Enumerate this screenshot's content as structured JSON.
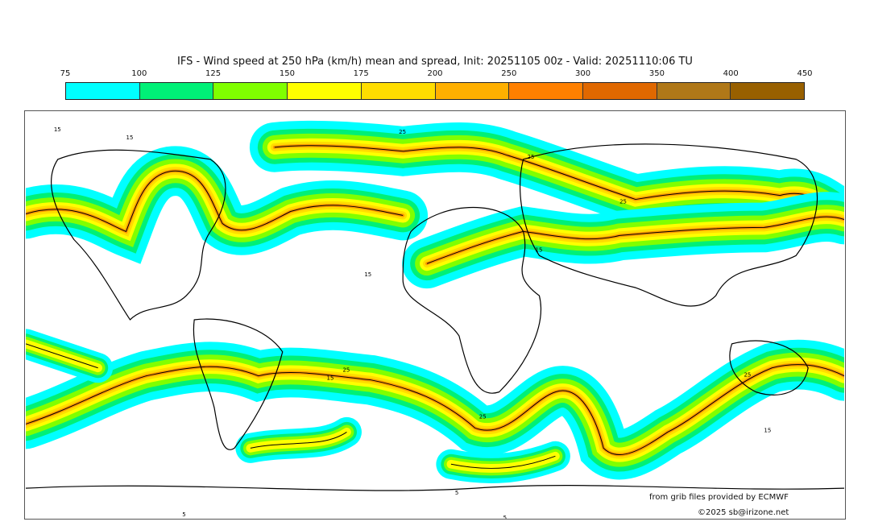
{
  "title": "IFS - Wind speed at 250 hPa (km/h) mean and spread, Init: 20251105 00z - Valid: 20251110:06 TU",
  "colorbar": {
    "ticks": [
      "75",
      "100",
      "125",
      "150",
      "175",
      "200",
      "250",
      "300",
      "350",
      "400",
      "450"
    ],
    "colors": [
      "#00ffff",
      "#00f077",
      "#80ff00",
      "#ffff00",
      "#ffdd00",
      "#ffb000",
      "#ff8000",
      "#e06800",
      "#b07818",
      "#986000"
    ]
  },
  "contour_labels": [
    "15",
    "25",
    "15",
    "25",
    "15",
    "25",
    "15",
    "25",
    "15",
    "25",
    "15",
    "25",
    "5",
    "5",
    "5"
  ],
  "credits": {
    "source": "from grib files provided by ECMWF",
    "copyright": "©2025 sb@irizone.net"
  }
}
